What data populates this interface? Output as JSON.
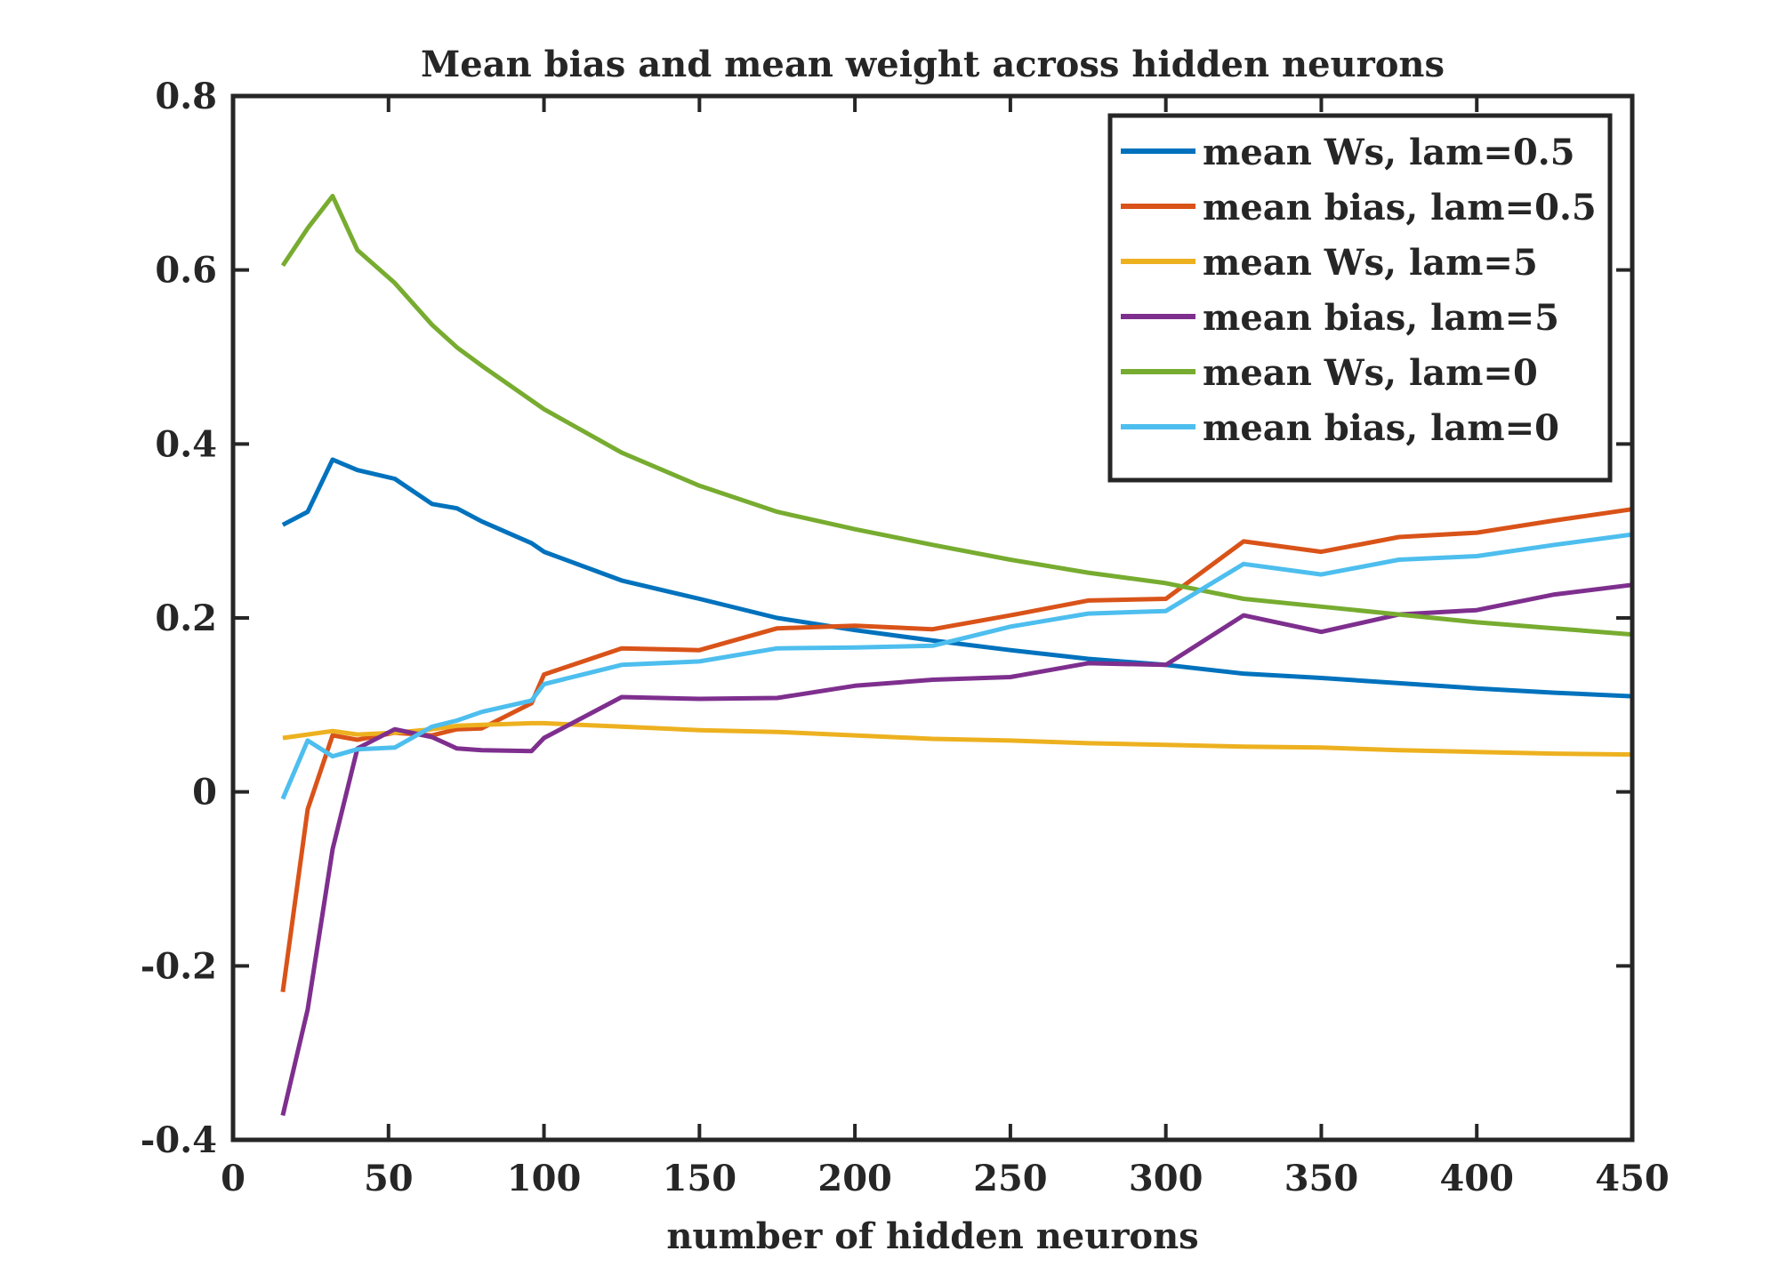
{
  "chart_data": {
    "type": "line",
    "title": "Mean bias and mean weight across hidden neurons",
    "xlabel": "number of hidden neurons",
    "ylabel": "",
    "xlim": [
      0,
      450
    ],
    "ylim": [
      -0.4,
      0.8
    ],
    "xticks": [
      0,
      50,
      100,
      150,
      200,
      250,
      300,
      350,
      400,
      450
    ],
    "xtick_labels": [
      "0",
      "50",
      "100",
      "150",
      "200",
      "250",
      "300",
      "350",
      "400",
      "450"
    ],
    "yticks": [
      -0.4,
      -0.2,
      0,
      0.2,
      0.4,
      0.6,
      0.8
    ],
    "ytick_labels": [
      "-0.4",
      "-0.2",
      "0",
      "0.2",
      "0.4",
      "0.6",
      "0.8"
    ],
    "grid": false,
    "legend_position": "top-right",
    "x": [
      16,
      24,
      32,
      40,
      52,
      64,
      72,
      80,
      96,
      100,
      125,
      150,
      175,
      200,
      225,
      250,
      275,
      300,
      325,
      350,
      375,
      400,
      425,
      450
    ],
    "series": [
      {
        "name": "mean Ws, lam=0.5",
        "color": "#0072BD",
        "values": [
          0.307,
          0.322,
          0.382,
          0.37,
          0.36,
          0.331,
          0.326,
          0.311,
          0.286,
          0.276,
          0.243,
          0.222,
          0.2,
          0.186,
          0.174,
          0.163,
          0.153,
          0.146,
          0.136,
          0.131,
          0.125,
          0.119,
          0.114,
          0.11
        ]
      },
      {
        "name": "mean bias, lam=0.5",
        "color": "#D95319",
        "values": [
          -0.23,
          -0.02,
          0.065,
          0.06,
          0.068,
          0.065,
          0.072,
          0.073,
          0.102,
          0.135,
          0.165,
          0.163,
          0.188,
          0.191,
          0.187,
          0.203,
          0.22,
          0.222,
          0.288,
          0.276,
          0.293,
          0.298,
          0.312,
          0.325
        ]
      },
      {
        "name": "mean Ws, lam=5",
        "color": "#EDB120",
        "values": [
          0.062,
          0.066,
          0.07,
          0.066,
          0.068,
          0.072,
          0.076,
          0.077,
          0.079,
          0.079,
          0.075,
          0.071,
          0.069,
          0.065,
          0.061,
          0.059,
          0.056,
          0.054,
          0.052,
          0.051,
          0.048,
          0.046,
          0.044,
          0.043
        ]
      },
      {
        "name": "mean bias, lam=5",
        "color": "#7E2F8E",
        "values": [
          -0.372,
          -0.25,
          -0.066,
          0.05,
          0.072,
          0.063,
          0.05,
          0.048,
          0.047,
          0.062,
          0.109,
          0.107,
          0.108,
          0.122,
          0.129,
          0.132,
          0.148,
          0.146,
          0.203,
          0.184,
          0.204,
          0.209,
          0.227,
          0.238
        ]
      },
      {
        "name": "mean Ws, lam=0",
        "color": "#77AC30",
        "values": [
          0.605,
          0.648,
          0.685,
          0.623,
          0.585,
          0.537,
          0.511,
          0.49,
          0.45,
          0.44,
          0.39,
          0.352,
          0.322,
          0.302,
          0.284,
          0.267,
          0.252,
          0.24,
          0.222,
          0.213,
          0.204,
          0.195,
          0.188,
          0.181
        ]
      },
      {
        "name": "mean bias, lam=0",
        "color": "#4DBEEE",
        "values": [
          -0.008,
          0.059,
          0.041,
          0.049,
          0.051,
          0.075,
          0.082,
          0.092,
          0.105,
          0.124,
          0.146,
          0.15,
          0.165,
          0.166,
          0.168,
          0.19,
          0.205,
          0.208,
          0.262,
          0.25,
          0.267,
          0.271,
          0.284,
          0.296
        ]
      }
    ]
  }
}
